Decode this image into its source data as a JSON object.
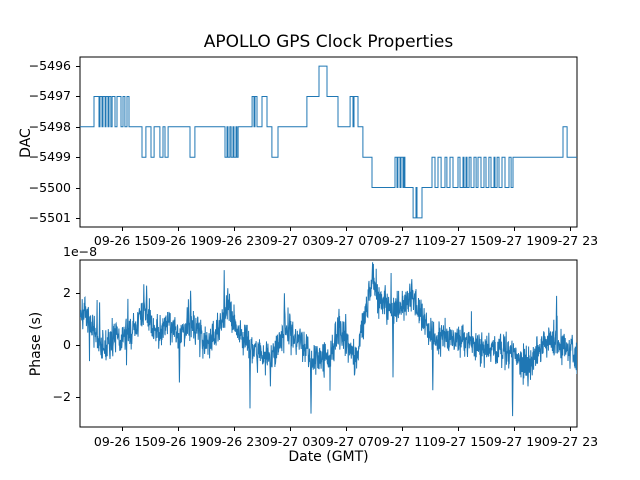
{
  "figure": {
    "background_color": "#ffffff",
    "text_color": "#000000",
    "line_color": "#1f77b4",
    "spine_color": "#000000"
  },
  "chart_data": [
    {
      "type": "line",
      "drawstyle": "steps-post",
      "title": "APOLLO GPS Clock Properties",
      "ylabel": "DAC",
      "x_unit": "hours since 09-26 00:00 GMT",
      "xlim": [
        12.0,
        47.5
      ],
      "ylim": [
        -5501.3,
        -5495.7
      ],
      "grid": false,
      "legend": "none",
      "yticks": [
        -5496,
        -5497,
        -5498,
        -5499,
        -5500,
        -5501
      ],
      "ytick_labels": [
        "−5496",
        "−5497",
        "−5498",
        "−5499",
        "−5500",
        "−5501"
      ],
      "xticks": [
        15,
        19,
        23,
        27,
        31,
        35,
        39,
        43,
        47
      ],
      "xtick_labels": [
        "09-26 15",
        "09-26 19",
        "09-26 23",
        "09-27 03",
        "09-27 07",
        "09-27 11",
        "09-27 15",
        "09-27 19",
        "09-27 23"
      ],
      "series": [
        {
          "name": "DAC",
          "points": [
            [
              12.0,
              -5498
            ],
            [
              13.0,
              -5497
            ],
            [
              13.36,
              -5498
            ],
            [
              13.43,
              -5497
            ],
            [
              13.57,
              -5498
            ],
            [
              13.64,
              -5497
            ],
            [
              13.79,
              -5498
            ],
            [
              13.86,
              -5497
            ],
            [
              14.0,
              -5498
            ],
            [
              14.07,
              -5497
            ],
            [
              14.21,
              -5498
            ],
            [
              14.29,
              -5497
            ],
            [
              14.5,
              -5498
            ],
            [
              14.64,
              -5497
            ],
            [
              14.93,
              -5498
            ],
            [
              15.07,
              -5497
            ],
            [
              15.21,
              -5498
            ],
            [
              15.36,
              -5497
            ],
            [
              15.5,
              -5498
            ],
            [
              16.43,
              -5499
            ],
            [
              16.71,
              -5498
            ],
            [
              17.07,
              -5499
            ],
            [
              17.29,
              -5498
            ],
            [
              17.71,
              -5499
            ],
            [
              17.93,
              -5498
            ],
            [
              18.07,
              -5499
            ],
            [
              18.29,
              -5498
            ],
            [
              19.86,
              -5499
            ],
            [
              20.21,
              -5498
            ],
            [
              22.36,
              -5499
            ],
            [
              22.5,
              -5498
            ],
            [
              22.57,
              -5499
            ],
            [
              22.71,
              -5498
            ],
            [
              22.79,
              -5499
            ],
            [
              22.93,
              -5498
            ],
            [
              23.0,
              -5499
            ],
            [
              23.14,
              -5498
            ],
            [
              23.21,
              -5499
            ],
            [
              23.29,
              -5498
            ],
            [
              24.29,
              -5497
            ],
            [
              24.43,
              -5498
            ],
            [
              24.5,
              -5497
            ],
            [
              24.64,
              -5498
            ],
            [
              25.0,
              -5497
            ],
            [
              25.36,
              -5498
            ],
            [
              25.71,
              -5499
            ],
            [
              26.14,
              -5498
            ],
            [
              28.21,
              -5497
            ],
            [
              29.07,
              -5496
            ],
            [
              29.64,
              -5497
            ],
            [
              30.43,
              -5498
            ],
            [
              31.29,
              -5497
            ],
            [
              31.5,
              -5498
            ],
            [
              31.57,
              -5497
            ],
            [
              31.86,
              -5498
            ],
            [
              32.21,
              -5499
            ],
            [
              32.86,
              -5500
            ],
            [
              34.5,
              -5499
            ],
            [
              34.64,
              -5500
            ],
            [
              34.71,
              -5499
            ],
            [
              34.86,
              -5500
            ],
            [
              34.93,
              -5499
            ],
            [
              35.07,
              -5500
            ],
            [
              35.14,
              -5499
            ],
            [
              35.21,
              -5500
            ],
            [
              35.79,
              -5501
            ],
            [
              36.0,
              -5500
            ],
            [
              36.07,
              -5501
            ],
            [
              36.43,
              -5500
            ],
            [
              37.14,
              -5499
            ],
            [
              37.36,
              -5500
            ],
            [
              37.57,
              -5499
            ],
            [
              37.79,
              -5500
            ],
            [
              38.07,
              -5499
            ],
            [
              38.21,
              -5500
            ],
            [
              38.43,
              -5499
            ],
            [
              38.64,
              -5500
            ],
            [
              39.0,
              -5499
            ],
            [
              39.14,
              -5500
            ],
            [
              39.36,
              -5499
            ],
            [
              39.43,
              -5500
            ],
            [
              39.57,
              -5499
            ],
            [
              39.64,
              -5500
            ],
            [
              39.79,
              -5499
            ],
            [
              39.93,
              -5500
            ],
            [
              40.14,
              -5499
            ],
            [
              40.29,
              -5500
            ],
            [
              40.43,
              -5499
            ],
            [
              40.64,
              -5500
            ],
            [
              40.86,
              -5499
            ],
            [
              41.0,
              -5500
            ],
            [
              41.21,
              -5499
            ],
            [
              41.36,
              -5500
            ],
            [
              41.57,
              -5499
            ],
            [
              41.64,
              -5500
            ],
            [
              41.79,
              -5499
            ],
            [
              41.93,
              -5500
            ],
            [
              42.14,
              -5499
            ],
            [
              42.36,
              -5500
            ],
            [
              42.64,
              -5499
            ],
            [
              42.79,
              -5500
            ],
            [
              42.93,
              -5499
            ],
            [
              46.5,
              -5498
            ],
            [
              46.79,
              -5499
            ]
          ]
        }
      ]
    },
    {
      "type": "line",
      "ylabel": "Phase (s)",
      "y_offset_label": "1e−8",
      "y_unit_scale": 1e-08,
      "xlabel": "Date (GMT)",
      "x_unit": "hours since 09-26 00:00 GMT",
      "xlim": [
        12.0,
        47.5
      ],
      "ylim": [
        -3.17,
        3.29
      ],
      "grid": false,
      "legend": "none",
      "yticks": [
        -2,
        0,
        2
      ],
      "ytick_labels": [
        "−2",
        "0",
        "2"
      ],
      "xticks": [
        15,
        19,
        23,
        27,
        31,
        35,
        39,
        43,
        47
      ],
      "xtick_labels": [
        "09-26 15",
        "09-26 19",
        "09-26 23",
        "09-27 03",
        "09-27 07",
        "09-27 11",
        "09-27 15",
        "09-27 19",
        "09-27 23"
      ],
      "series": [
        {
          "name": "Phase",
          "representation": "trend_plus_noise",
          "sample_step_hours": 0.02,
          "noise_std": 0.33,
          "noise_seed": 7,
          "trend_anchors": [
            [
              12.0,
              1.35
            ],
            [
              12.4,
              1.15
            ],
            [
              12.7,
              0.8
            ],
            [
              13.1,
              0.35
            ],
            [
              13.4,
              0.0
            ],
            [
              13.8,
              -0.1
            ],
            [
              14.1,
              0.1
            ],
            [
              14.5,
              0.3
            ],
            [
              14.9,
              0.2
            ],
            [
              15.2,
              0.3
            ],
            [
              15.6,
              0.45
            ],
            [
              15.9,
              0.7
            ],
            [
              16.3,
              1.05
            ],
            [
              16.6,
              1.2
            ],
            [
              17.0,
              0.9
            ],
            [
              17.4,
              0.5
            ],
            [
              17.7,
              0.6
            ],
            [
              18.1,
              0.9
            ],
            [
              18.4,
              0.85
            ],
            [
              18.8,
              0.6
            ],
            [
              19.1,
              0.35
            ],
            [
              19.5,
              0.6
            ],
            [
              19.9,
              1.0
            ],
            [
              20.2,
              0.75
            ],
            [
              20.6,
              0.4
            ],
            [
              20.9,
              0.2
            ],
            [
              21.3,
              0.3
            ],
            [
              21.6,
              0.4
            ],
            [
              22.0,
              0.6
            ],
            [
              22.4,
              1.2
            ],
            [
              22.7,
              1.25
            ],
            [
              23.1,
              0.85
            ],
            [
              23.4,
              0.5
            ],
            [
              23.8,
              0.35
            ],
            [
              24.1,
              0.1
            ],
            [
              24.5,
              -0.2
            ],
            [
              24.9,
              -0.3
            ],
            [
              25.2,
              -0.5
            ],
            [
              25.6,
              -0.55
            ],
            [
              25.9,
              -0.3
            ],
            [
              26.3,
              0.2
            ],
            [
              26.6,
              0.6
            ],
            [
              27.0,
              0.5
            ],
            [
              27.4,
              0.4
            ],
            [
              27.7,
              0.2
            ],
            [
              28.1,
              0.0
            ],
            [
              28.4,
              -0.4
            ],
            [
              28.8,
              -0.7
            ],
            [
              29.1,
              -0.6
            ],
            [
              29.5,
              -0.5
            ],
            [
              29.9,
              -0.45
            ],
            [
              30.2,
              0.15
            ],
            [
              30.6,
              0.55
            ],
            [
              30.9,
              0.5
            ],
            [
              31.3,
              -0.3
            ],
            [
              31.6,
              -0.55
            ],
            [
              32.0,
              0.3
            ],
            [
              32.4,
              1.2
            ],
            [
              32.7,
              2.2
            ],
            [
              32.9,
              2.6
            ],
            [
              33.3,
              1.9
            ],
            [
              33.6,
              1.7
            ],
            [
              34.0,
              1.5
            ],
            [
              34.4,
              1.45
            ],
            [
              34.7,
              1.55
            ],
            [
              35.1,
              1.5
            ],
            [
              35.4,
              1.75
            ],
            [
              35.7,
              1.95
            ],
            [
              36.1,
              1.5
            ],
            [
              36.5,
              1.0
            ],
            [
              36.9,
              0.6
            ],
            [
              37.2,
              0.3
            ],
            [
              37.7,
              0.3
            ],
            [
              38.4,
              0.2
            ],
            [
              39.1,
              0.2
            ],
            [
              39.9,
              0.1
            ],
            [
              40.6,
              0.0
            ],
            [
              41.3,
              -0.1
            ],
            [
              42.0,
              -0.2
            ],
            [
              42.6,
              -0.3
            ],
            [
              42.9,
              -0.4
            ],
            [
              43.4,
              -0.6
            ],
            [
              43.9,
              -0.7
            ],
            [
              44.5,
              -0.5
            ],
            [
              44.9,
              -0.2
            ],
            [
              45.2,
              0.1
            ],
            [
              45.6,
              0.2
            ],
            [
              46.1,
              0.0
            ],
            [
              46.5,
              -0.1
            ],
            [
              47.0,
              -0.2
            ],
            [
              47.5,
              -0.5
            ]
          ],
          "notable_spikes": [
            [
              13.4,
              1.65
            ],
            [
              16.55,
              2.35
            ],
            [
              16.75,
              2.3
            ],
            [
              19.1,
              -1.45
            ],
            [
              19.9,
              2.1
            ],
            [
              22.3,
              2.9
            ],
            [
              22.55,
              2.2
            ],
            [
              24.15,
              -2.45
            ],
            [
              25.6,
              -1.6
            ],
            [
              26.6,
              2.0
            ],
            [
              28.5,
              -2.65
            ],
            [
              30.5,
              1.4
            ],
            [
              32.9,
              3.2
            ],
            [
              34.35,
              -1.25
            ],
            [
              35.7,
              2.55
            ],
            [
              37.2,
              -1.75
            ],
            [
              42.9,
              -2.75
            ],
            [
              44.0,
              -1.6
            ],
            [
              46.05,
              1.9
            ]
          ]
        }
      ]
    }
  ]
}
